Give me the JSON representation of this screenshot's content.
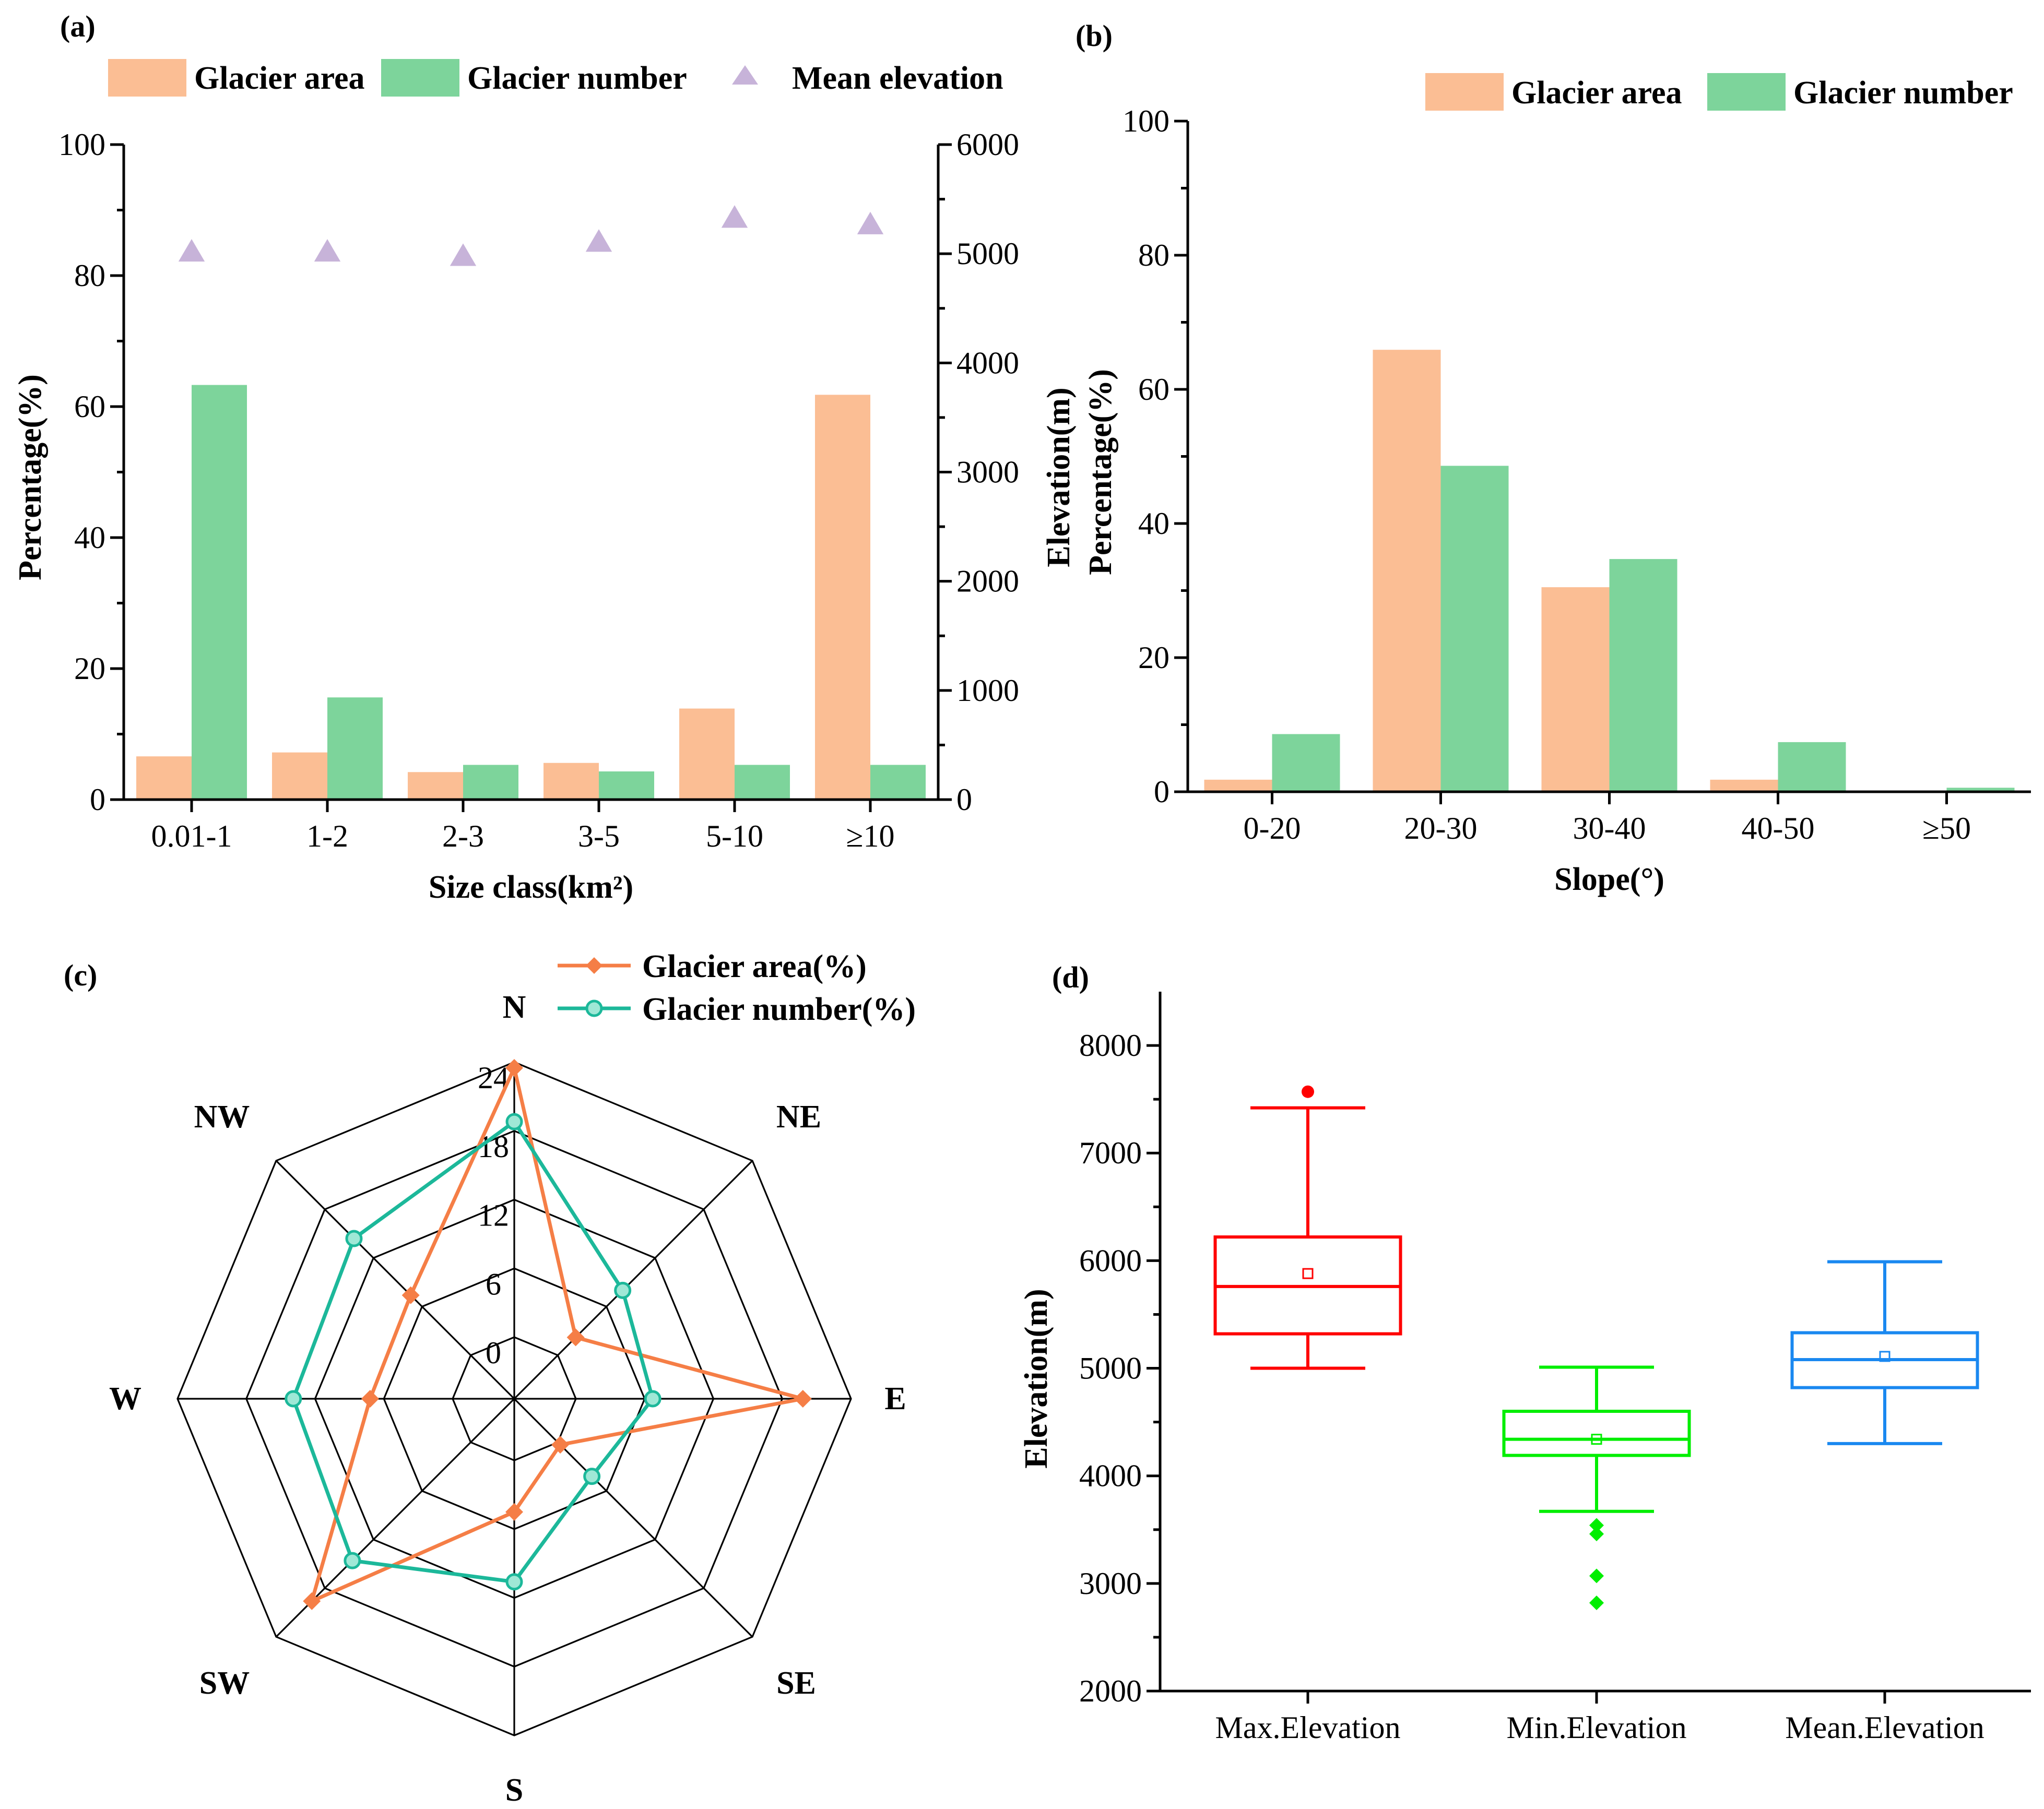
{
  "colors": {
    "area": "#fbbe94",
    "number": "#7dd49b",
    "elevation": "#c7b3d9",
    "radar_area": "#f57e46",
    "radar_number": "#1cb89a",
    "box_max": "#ff0000",
    "box_min": "#00ee00",
    "box_mean": "#1a88f0"
  },
  "chart_data": [
    {
      "id": "a",
      "type": "bar",
      "panel_label": "(a)",
      "title": "",
      "xlabel": "Size class(km²)",
      "ylabel": "Percentage(%)",
      "y2label": "Elevation(m)",
      "categories": [
        "0.01-1",
        "1-2",
        "2-3",
        "3-5",
        "5-10",
        "≥10"
      ],
      "ylim": [
        0,
        100
      ],
      "yticks": [
        0,
        20,
        40,
        60,
        80,
        100
      ],
      "y2lim": [
        0,
        6000
      ],
      "y2ticks": [
        0,
        1000,
        2000,
        3000,
        4000,
        5000,
        6000
      ],
      "series": [
        {
          "name": "Glacier area",
          "axis": "left",
          "values": [
            6.6,
            7.2,
            4.2,
            5.6,
            13.9,
            61.8
          ]
        },
        {
          "name": "Glacier number",
          "axis": "left",
          "values": [
            63.3,
            15.6,
            5.3,
            4.3,
            5.3,
            5.3
          ]
        },
        {
          "name": "Mean elevation",
          "axis": "right",
          "marker": "triangle",
          "values": [
            5020,
            5020,
            4980,
            5110,
            5330,
            5270
          ]
        }
      ],
      "legend": "top"
    },
    {
      "id": "b",
      "type": "bar",
      "panel_label": "(b)",
      "title": "",
      "xlabel": "Slope(°)",
      "ylabel": "Percentage(%)",
      "categories": [
        "0-20",
        "20-30",
        "30-40",
        "40-50",
        "≥50"
      ],
      "ylim": [
        0,
        100
      ],
      "yticks": [
        0,
        20,
        40,
        60,
        80,
        100
      ],
      "series": [
        {
          "name": "Glacier area",
          "values": [
            1.8,
            65.9,
            30.5,
            1.8,
            0
          ]
        },
        {
          "name": "Glacier number",
          "values": [
            8.6,
            48.6,
            34.7,
            7.4,
            0.6
          ]
        }
      ],
      "legend": "top-right"
    },
    {
      "id": "c",
      "type": "radar",
      "panel_label": "(c)",
      "title": "",
      "directions": [
        "N",
        "NE",
        "E",
        "SE",
        "S",
        "SW",
        "W",
        "NW"
      ],
      "rlim": [
        0,
        24
      ],
      "rticks": [
        0,
        6,
        12,
        18,
        24
      ],
      "series": [
        {
          "name": "Glacier area(%)",
          "values": [
            23.5,
            2.2,
            19.8,
            0.3,
            4.5,
            19.6,
            7.2,
            7.4
          ]
        },
        {
          "name": "Glacier number(%)",
          "values": [
            18.8,
            8.0,
            6.7,
            4.2,
            10.6,
            14.6,
            13.9,
            14.4
          ]
        }
      ],
      "legend": "top-right"
    },
    {
      "id": "d",
      "type": "box",
      "panel_label": "(d)",
      "title": "",
      "ylabel": "Elevation(m)",
      "categories": [
        "Max.Elevation",
        "Min.Elevation",
        "Mean.Elevation"
      ],
      "ylim": [
        2000,
        8500
      ],
      "yticks": [
        2000,
        3000,
        4000,
        5000,
        6000,
        7000,
        8000
      ],
      "boxes": [
        {
          "name": "Max.Elevation",
          "whisker_low": 5000,
          "q1": 5320,
          "median": 5760,
          "q3": 6220,
          "whisker_high": 7420,
          "mean": 5880,
          "outliers": [
            7570
          ]
        },
        {
          "name": "Min.Elevation",
          "whisker_low": 3670,
          "q1": 4190,
          "median": 4340,
          "q3": 4600,
          "whisker_high": 5010,
          "mean": 4340,
          "outliers": [
            3540,
            3460,
            3070,
            2820
          ]
        },
        {
          "name": "Mean.Elevation",
          "whisker_low": 4300,
          "q1": 4820,
          "median": 5080,
          "q3": 5330,
          "whisker_high": 5990,
          "mean": 5110,
          "outliers": []
        }
      ]
    }
  ]
}
